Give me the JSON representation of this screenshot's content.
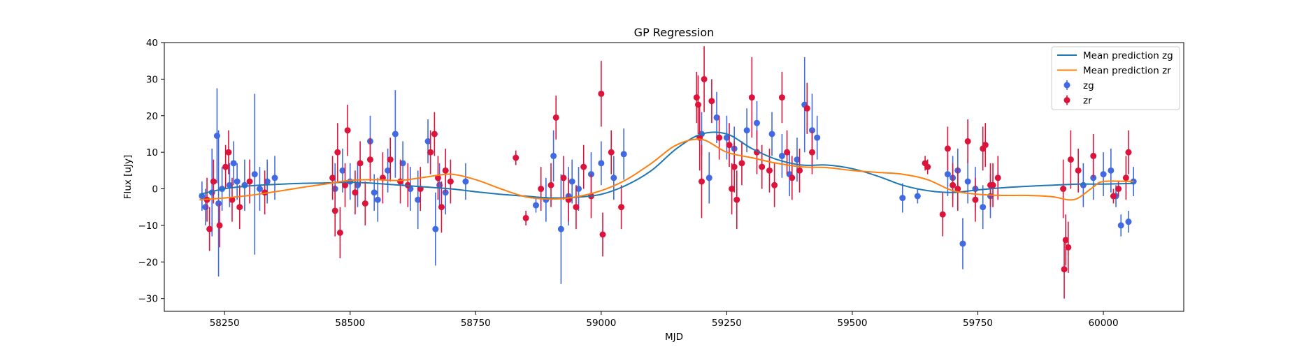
{
  "chart_data": {
    "type": "scatter",
    "title": "GP Regression",
    "xlabel": "MJD",
    "ylabel": "Flux [uJy]",
    "xlim": [
      58130,
      60160
    ],
    "ylim": [
      -33.5,
      40
    ],
    "xticks": [
      58250,
      58500,
      58750,
      59000,
      59250,
      59500,
      59750,
      60000
    ],
    "yticks": [
      -30,
      -20,
      -10,
      0,
      10,
      20,
      30,
      40
    ],
    "grid": false,
    "legend_position": "top-right",
    "series": [
      {
        "name": "Mean prediction zg",
        "kind": "line",
        "color": "#1f77b4",
        "x": [
          58200,
          58250,
          58300,
          58350,
          58400,
          58450,
          58500,
          58550,
          58600,
          58650,
          58700,
          58750,
          58800,
          58850,
          58900,
          58950,
          59000,
          59050,
          59100,
          59150,
          59200,
          59250,
          59300,
          59350,
          59400,
          59450,
          59500,
          59550,
          59600,
          59650,
          59700,
          59750,
          59800,
          59850,
          59900,
          59950,
          60000,
          60060
        ],
        "y": [
          -1.5,
          0,
          0.8,
          1.2,
          1.5,
          1.6,
          1.8,
          1.5,
          1.0,
          0.5,
          0,
          -0.8,
          -1.5,
          -2,
          -2.5,
          -2.3,
          -1.5,
          1,
          5,
          11,
          15,
          15,
          11,
          8,
          6.5,
          6.5,
          5.5,
          3.5,
          1,
          -0.5,
          -1,
          -0.3,
          0.3,
          0.7,
          1,
          1.3,
          1.3,
          1.5
        ]
      },
      {
        "name": "Mean prediction zr",
        "kind": "line",
        "color": "#ff7f0e",
        "x": [
          58200,
          58250,
          58300,
          58350,
          58400,
          58450,
          58500,
          58550,
          58600,
          58650,
          58700,
          58750,
          58800,
          58850,
          58900,
          58950,
          59000,
          59050,
          59100,
          59150,
          59200,
          59250,
          59300,
          59350,
          59400,
          59450,
          59500,
          59550,
          59600,
          59650,
          59700,
          59750,
          59800,
          59850,
          59900,
          59930,
          59950,
          59980,
          60000,
          60060
        ],
        "y": [
          -3,
          -2.5,
          -1.8,
          -0.8,
          0.3,
          1.3,
          2.3,
          2.5,
          2.3,
          3.2,
          4,
          2.5,
          0,
          -2.2,
          -2.8,
          -2.2,
          -0.5,
          2.5,
          7,
          12,
          13.5,
          10,
          8.5,
          7,
          6,
          5.8,
          5,
          4.5,
          4,
          2.5,
          -0.5,
          -1.5,
          -1.8,
          -1.8,
          -2.2,
          -3,
          -2.5,
          0.5,
          2,
          2
        ]
      },
      {
        "name": "zg",
        "kind": "errorbar",
        "color": "#4169e1",
        "x": [
          58205,
          58212,
          58225,
          58235,
          58238,
          58245,
          58260,
          58268,
          58275,
          58290,
          58310,
          58320,
          58335,
          58350,
          58470,
          58485,
          58500,
          58515,
          58540,
          58548,
          58555,
          58575,
          58590,
          58605,
          58620,
          58635,
          58655,
          58670,
          58678,
          58690,
          58730,
          58870,
          58890,
          58905,
          58920,
          58935,
          58942,
          58955,
          58980,
          59000,
          59025,
          59045,
          59200,
          59215,
          59230,
          59250,
          59265,
          59290,
          59310,
          59340,
          59360,
          59375,
          59390,
          59405,
          59420,
          59430,
          59600,
          59630,
          59690,
          59700,
          59710,
          59720,
          59730,
          59745,
          59760,
          59775,
          59960,
          59980,
          60000,
          60015,
          60025,
          60035,
          60050,
          60060
        ],
        "y": [
          -2,
          -5,
          -1,
          14.5,
          -4,
          0,
          1,
          7,
          2,
          1,
          4,
          0,
          2,
          3,
          0,
          5,
          2,
          1,
          13,
          -1,
          -3,
          5,
          15,
          7,
          0,
          -3,
          13,
          -11,
          1,
          -1,
          2,
          -4.5,
          -3,
          9,
          -11,
          -2,
          2,
          0,
          4,
          7,
          3,
          9.5,
          15,
          3,
          19.5,
          14,
          11,
          16,
          18,
          15,
          9,
          4,
          8,
          23,
          16,
          14,
          -2.5,
          -2,
          4,
          3,
          5,
          -15,
          2,
          0,
          -5,
          -2,
          1,
          3,
          4,
          5,
          -2,
          -10,
          -9,
          2
        ],
        "err": [
          4,
          5,
          12,
          13,
          20,
          6,
          6,
          6,
          5,
          7,
          22,
          6,
          6,
          6,
          7,
          6,
          5,
          6,
          7,
          5,
          6,
          6,
          12,
          6,
          6,
          8,
          6,
          10,
          6,
          6,
          5,
          2,
          6,
          7,
          15,
          8,
          6,
          6,
          6,
          6,
          6,
          7,
          6,
          7,
          7,
          6,
          6,
          6,
          6,
          6,
          6,
          6,
          6,
          13,
          10,
          6,
          4,
          2,
          6,
          6,
          6,
          7,
          6,
          6,
          6,
          6,
          6,
          6,
          6,
          6,
          3,
          3,
          3,
          4
        ]
      },
      {
        "name": "zr",
        "kind": "errorbar",
        "color": "#dc143c",
        "x": [
          58215,
          58220,
          58228,
          58240,
          58252,
          58258,
          58265,
          58280,
          58300,
          58330,
          58465,
          58470,
          58475,
          58480,
          58490,
          58495,
          58510,
          58520,
          58530,
          58540,
          58565,
          58580,
          58600,
          58615,
          58640,
          58660,
          58668,
          58675,
          58682,
          58690,
          58700,
          58830,
          58850,
          58880,
          58900,
          58910,
          58925,
          58935,
          58950,
          58965,
          58980,
          59000,
          59003,
          59020,
          59040,
          59190,
          59193,
          59196,
          59200,
          59205,
          59220,
          59235,
          59255,
          59260,
          59265,
          59270,
          59280,
          59300,
          59310,
          59320,
          59335,
          59345,
          59360,
          59370,
          59380,
          59395,
          59410,
          59420,
          59645,
          59650,
          59680,
          59690,
          59700,
          59710,
          59730,
          59745,
          59760,
          59765,
          59775,
          59780,
          59790,
          59920,
          59922,
          59925,
          59930,
          59935,
          59950,
          59980,
          60020,
          60030,
          60045,
          60050
        ],
        "y": [
          -3,
          -11,
          2,
          -10,
          6,
          10,
          -3,
          -5,
          2,
          -1,
          3,
          -6,
          10,
          -12,
          1,
          16,
          -1,
          7,
          -4,
          8,
          3,
          8,
          2,
          1,
          0,
          10,
          15,
          3,
          -5,
          5,
          2,
          8.5,
          -8,
          0,
          1,
          19.5,
          3,
          -3,
          -5,
          6,
          -2,
          26,
          -12.5,
          10,
          -5,
          25,
          23,
          14,
          2,
          30,
          24,
          14,
          12,
          0,
          6,
          -3,
          7,
          25,
          10,
          6,
          5,
          1,
          25,
          10,
          3,
          5,
          22,
          10,
          7,
          6,
          -7,
          11,
          1,
          0,
          13,
          -3,
          11,
          12,
          1,
          1,
          3,
          0,
          -22,
          -14,
          -16,
          8,
          5,
          9,
          -2,
          0,
          3,
          10
        ],
        "err": [
          6,
          6,
          6,
          6,
          6,
          6,
          6,
          6,
          6,
          6,
          6,
          7,
          8,
          7,
          6,
          7,
          6,
          6,
          6,
          6,
          7,
          6,
          6,
          6,
          6,
          6,
          6,
          6,
          7,
          6,
          6,
          2,
          2,
          6,
          6,
          6,
          6,
          6,
          6,
          6,
          6,
          9,
          6,
          6,
          6,
          7,
          8,
          9,
          10,
          9,
          6,
          6,
          6,
          7,
          7,
          8,
          6,
          11,
          6,
          6,
          6,
          6,
          7,
          6,
          6,
          6,
          7,
          6,
          2,
          2,
          6,
          6,
          6,
          6,
          6,
          6,
          6,
          6,
          6,
          6,
          6,
          8,
          8,
          7,
          7,
          8,
          6,
          6,
          2,
          2,
          6,
          6
        ]
      }
    ]
  }
}
